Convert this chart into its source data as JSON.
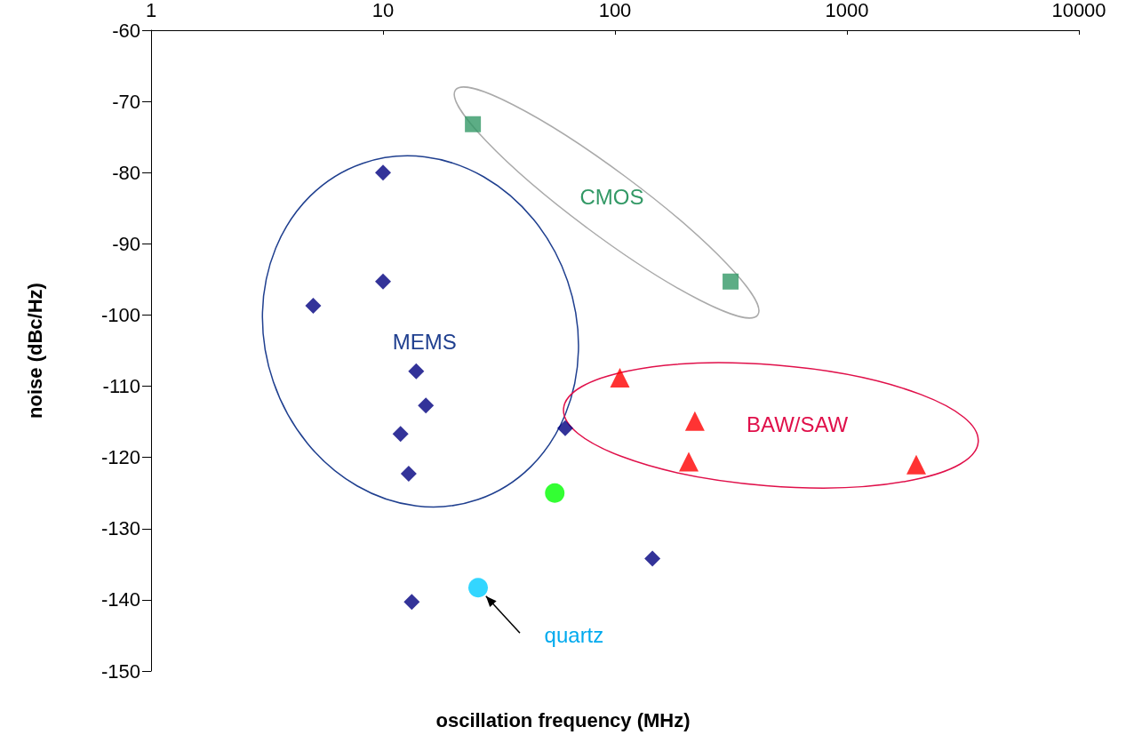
{
  "chart_data": {
    "type": "scatter",
    "xlabel": "oscillation frequency (MHz)",
    "ylabel": "noise (dBc/Hz)",
    "log": "x",
    "xlim": [
      1,
      10000
    ],
    "xticks": [
      1,
      10,
      100,
      1000,
      10000
    ],
    "ylim": [
      -150,
      -60
    ],
    "yticks": [
      -150,
      -140,
      -130,
      -120,
      -110,
      -100,
      -90,
      -80,
      -70,
      -60
    ],
    "grid": false,
    "legend": false,
    "series": [
      {
        "name": "MEMS",
        "color": "#000080",
        "marker": "diamond",
        "x": [
          10,
          5,
          10,
          13.9,
          15.3,
          11.9,
          12.9,
          61,
          145,
          13.3
        ],
        "values": [
          -80,
          -98.7,
          -95.3,
          -107.9,
          -112.7,
          -116.7,
          -122.3,
          -115.9,
          -134.2,
          -140.3
        ]
      },
      {
        "name": "CMOS",
        "color": "#339966",
        "marker": "square",
        "x": [
          24.4,
          315
        ],
        "values": [
          -73.2,
          -95.3
        ]
      },
      {
        "name": "BAW/SAW",
        "color": "#ff0000",
        "marker": "triangle",
        "x": [
          105,
          221,
          208,
          1990
        ],
        "values": [
          -108.8,
          -114.9,
          -120.6,
          -121
        ]
      },
      {
        "color": "#00ff00",
        "marker": "circle",
        "x": [
          55
        ],
        "values": [
          -125
        ]
      },
      {
        "name": "quartz",
        "color": "#00ccff",
        "marker": "circle",
        "x": [
          25.7
        ],
        "values": [
          -138.3
        ]
      }
    ]
  }
}
